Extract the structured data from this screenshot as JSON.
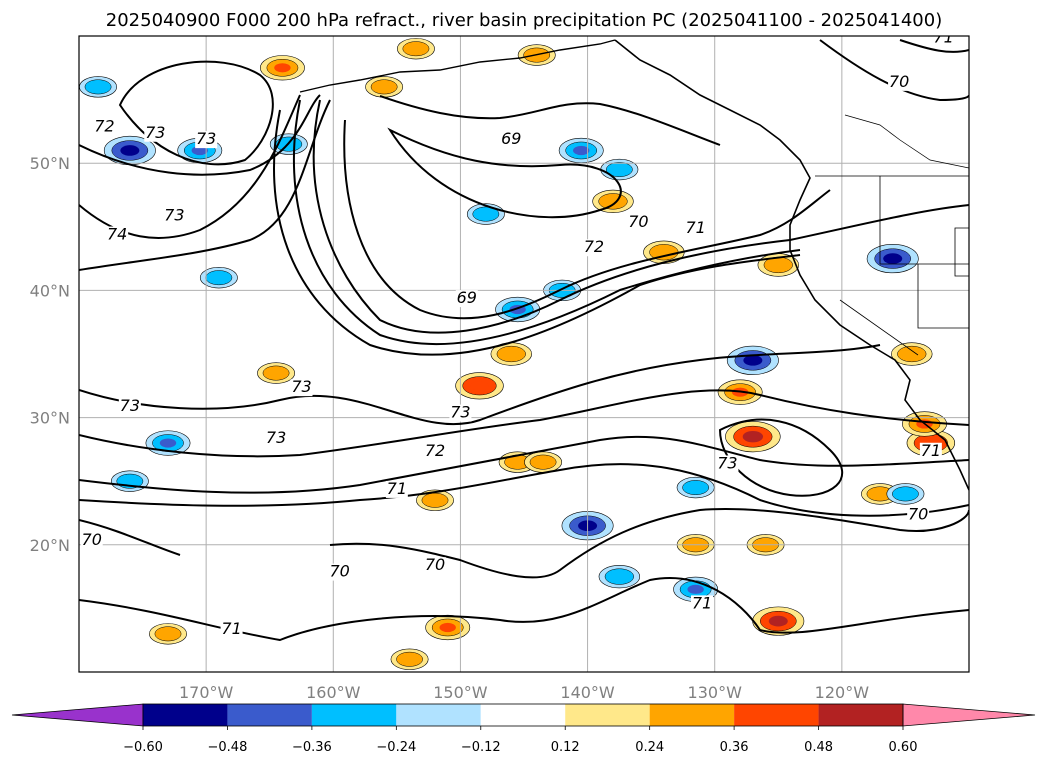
{
  "chart_data": {
    "type": "contour map",
    "title": "2025040900 F000 200 hPa refract., river basin precipitation PC (2025041100 - 2025041400)",
    "lon_range": [
      -180,
      -110
    ],
    "lat_range": [
      10,
      60
    ],
    "lon_ticks": [
      {
        "lon": -170,
        "label": "170°W"
      },
      {
        "lon": -160,
        "label": "160°W"
      },
      {
        "lon": -150,
        "label": "150°W"
      },
      {
        "lon": -140,
        "label": "140°W"
      },
      {
        "lon": -130,
        "label": "130°W"
      },
      {
        "lon": -120,
        "label": "120°W"
      }
    ],
    "lat_ticks": [
      {
        "lat": 50,
        "label": "50°N"
      },
      {
        "lat": 40,
        "label": "40°N"
      },
      {
        "lat": 30,
        "label": "30°N"
      },
      {
        "lat": 20,
        "label": "20°N"
      }
    ],
    "grid": true,
    "colorbar": {
      "orientation": "horizontal",
      "extend": "both",
      "levels": [
        -0.6,
        -0.48,
        -0.36,
        -0.24,
        -0.12,
        0.12,
        0.24,
        0.36,
        0.48,
        0.6
      ],
      "tick_labels": [
        "−0.60",
        "−0.48",
        "−0.36",
        "−0.24",
        "−0.12",
        "0.12",
        "0.24",
        "0.36",
        "0.48",
        "0.60"
      ],
      "colors": [
        "#9932cc",
        "#00008b",
        "#3a5bcc",
        "#00bfff",
        "#b0e2ff",
        "#ffffff",
        "#ffe88a",
        "#ffa500",
        "#ff4500",
        "#b22222",
        "#ff88aa"
      ]
    },
    "contour_labels": [
      {
        "lon": -178,
        "lat": 52.5,
        "text": "72"
      },
      {
        "lon": -174,
        "lat": 52.0,
        "text": "73"
      },
      {
        "lon": -170,
        "lat": 51.5,
        "text": "73"
      },
      {
        "lon": -172.5,
        "lat": 45.5,
        "text": "73"
      },
      {
        "lon": -177,
        "lat": 44.0,
        "text": "74"
      },
      {
        "lon": -176,
        "lat": 30.5,
        "text": "73"
      },
      {
        "lon": -162.5,
        "lat": 32.0,
        "text": "73"
      },
      {
        "lon": -164.5,
        "lat": 28.0,
        "text": "73"
      },
      {
        "lon": -179,
        "lat": 20.0,
        "text": "70"
      },
      {
        "lon": -168,
        "lat": 13.0,
        "text": "71"
      },
      {
        "lon": -146,
        "lat": 51.5,
        "text": "69"
      },
      {
        "lon": -149.5,
        "lat": 39.0,
        "text": "69"
      },
      {
        "lon": -136,
        "lat": 45.0,
        "text": "70"
      },
      {
        "lon": -131.5,
        "lat": 44.5,
        "text": "71"
      },
      {
        "lon": -139.5,
        "lat": 43.0,
        "text": "72"
      },
      {
        "lon": -150,
        "lat": 30.0,
        "text": "73"
      },
      {
        "lon": -152,
        "lat": 27.0,
        "text": "72"
      },
      {
        "lon": -155,
        "lat": 24.0,
        "text": "71"
      },
      {
        "lon": -152,
        "lat": 18.0,
        "text": "70"
      },
      {
        "lon": -159.5,
        "lat": 17.5,
        "text": "70"
      },
      {
        "lon": -129,
        "lat": 26.0,
        "text": "73"
      },
      {
        "lon": -131,
        "lat": 15.0,
        "text": "71"
      },
      {
        "lon": -115.5,
        "lat": 56.0,
        "text": "70"
      },
      {
        "lon": -112,
        "lat": 59.5,
        "text": "71"
      },
      {
        "lon": -114,
        "lat": 22.0,
        "text": "70"
      },
      {
        "lon": -113,
        "lat": 27.0,
        "text": "71"
      }
    ],
    "precip_anomaly_blobs": [
      {
        "lon": -176,
        "lat": 51.0,
        "value": -0.5
      },
      {
        "lon": -178.5,
        "lat": 56.0,
        "value": -0.3
      },
      {
        "lon": -170.5,
        "lat": 51.0,
        "value": -0.4
      },
      {
        "lon": -169,
        "lat": 41.0,
        "value": -0.3
      },
      {
        "lon": -164,
        "lat": 57.5,
        "value": 0.4
      },
      {
        "lon": -163.5,
        "lat": 51.5,
        "value": -0.3
      },
      {
        "lon": -148,
        "lat": 46.0,
        "value": -0.3
      },
      {
        "lon": -145.5,
        "lat": 38.5,
        "value": -0.4
      },
      {
        "lon": -140.5,
        "lat": 51.0,
        "value": -0.4
      },
      {
        "lon": -137.5,
        "lat": 49.5,
        "value": -0.3
      },
      {
        "lon": -138,
        "lat": 47.0,
        "value": 0.35
      },
      {
        "lon": -142,
        "lat": 40.0,
        "value": -0.3
      },
      {
        "lon": -134,
        "lat": 43.0,
        "value": 0.35
      },
      {
        "lon": -125,
        "lat": 42.0,
        "value": 0.35
      },
      {
        "lon": -116,
        "lat": 42.5,
        "value": -0.5
      },
      {
        "lon": -146,
        "lat": 35.0,
        "value": 0.35
      },
      {
        "lon": -148.5,
        "lat": 32.5,
        "value": 0.45
      },
      {
        "lon": -127,
        "lat": 34.5,
        "value": -0.5
      },
      {
        "lon": -128,
        "lat": 32.0,
        "value": 0.4
      },
      {
        "lon": -127,
        "lat": 28.5,
        "value": 0.55
      },
      {
        "lon": -113,
        "lat": 28.0,
        "value": 0.45
      },
      {
        "lon": -113.5,
        "lat": 29.5,
        "value": 0.4
      },
      {
        "lon": -164.5,
        "lat": 33.5,
        "value": 0.3
      },
      {
        "lon": -173,
        "lat": 28.0,
        "value": -0.4
      },
      {
        "lon": -176,
        "lat": 25.0,
        "value": -0.3
      },
      {
        "lon": -140,
        "lat": 21.5,
        "value": -0.5
      },
      {
        "lon": -131.5,
        "lat": 20.0,
        "value": 0.3
      },
      {
        "lon": -126,
        "lat": 20.0,
        "value": 0.3
      },
      {
        "lon": -125,
        "lat": 14.0,
        "value": 0.5
      },
      {
        "lon": -151,
        "lat": 13.5,
        "value": 0.4
      },
      {
        "lon": -154,
        "lat": 11.0,
        "value": 0.3
      },
      {
        "lon": -173,
        "lat": 13.0,
        "value": 0.3
      },
      {
        "lon": -131.5,
        "lat": 16.5,
        "value": -0.4
      },
      {
        "lon": -137.5,
        "lat": 17.5,
        "value": -0.35
      },
      {
        "lon": -145.5,
        "lat": 26.5,
        "value": 0.3
      },
      {
        "lon": -143.5,
        "lat": 26.5,
        "value": 0.3
      },
      {
        "lon": -152,
        "lat": 23.5,
        "value": 0.3
      },
      {
        "lon": -131.5,
        "lat": 24.5,
        "value": -0.3
      },
      {
        "lon": -117,
        "lat": 24.0,
        "value": 0.3
      },
      {
        "lon": -115,
        "lat": 24.0,
        "value": -0.3
      },
      {
        "lon": -144,
        "lat": 58.5,
        "value": 0.3
      },
      {
        "lon": -153.5,
        "lat": 59.0,
        "value": 0.3
      },
      {
        "lon": -156,
        "lat": 56.0,
        "value": 0.3
      },
      {
        "lon": -114.5,
        "lat": 35.0,
        "value": 0.35
      }
    ],
    "contour_levels": [
      69,
      70,
      71,
      72,
      73,
      74
    ]
  }
}
